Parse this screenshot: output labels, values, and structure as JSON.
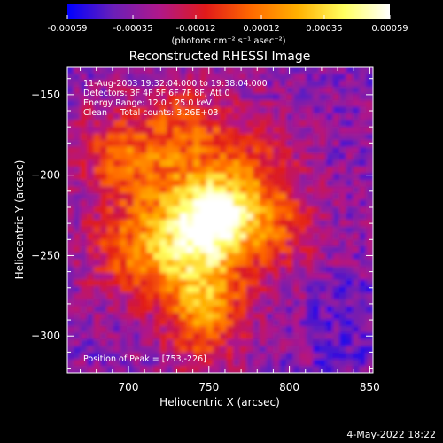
{
  "chart_data": {
    "type": "heatmap",
    "title": "Reconstructed RHESSI Image",
    "xlabel": "Heliocentric X (arcsec)",
    "ylabel": "Heliocentric Y (arcsec)",
    "xlim": [
      662,
      852
    ],
    "ylim": [
      -323,
      -133
    ],
    "x_ticks": [
      700,
      750,
      800,
      850
    ],
    "y_ticks": [
      -150,
      -200,
      -250,
      -300
    ],
    "colorbar": {
      "ticks": [
        "-0.00059",
        "-0.00035",
        "-0.00012",
        "0.00012",
        "0.00035",
        "0.00059"
      ],
      "tick_values": [
        -0.00059,
        -0.00035,
        -0.00012,
        0.00012,
        0.00035,
        0.00059
      ],
      "label": "(photons cm⁻² s⁻¹ asec⁻²)",
      "colors": [
        "#0000ff",
        "#6a1fb8",
        "#b0188a",
        "#e01a1a",
        "#ff6a00",
        "#ffb000",
        "#ffff60",
        "#ffffff"
      ]
    },
    "annotations": [
      "11-Aug-2003 19:32:04.000 to 19:38:04.000",
      "Detectors: 3F 4F 5F 6F 7F 8F, Att 0",
      "Energy Range: 12.0 - 25.0 keV",
      "Clean     Total counts: 3.26E+03"
    ],
    "peak_label": "Position of Peak = [753,-226]",
    "peak": [
      753,
      -226
    ]
  },
  "footer": {
    "date": "4-May-2022 18:22"
  }
}
